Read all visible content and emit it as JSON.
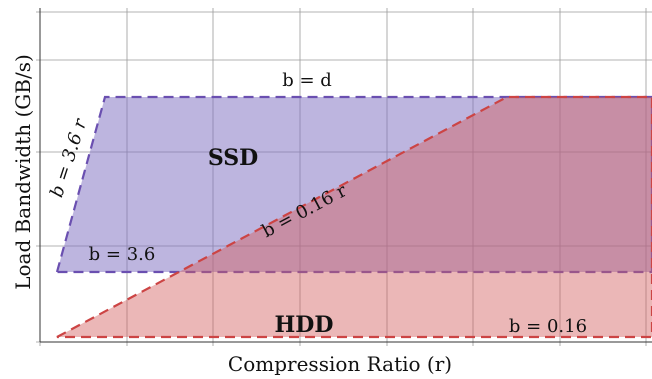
{
  "chart_data": {
    "type": "area",
    "xlabel": "Compression Ratio (r)",
    "ylabel": "Load Bandwidth (GB/s)",
    "grid": true,
    "ticks_labeled": false,
    "regions": [
      {
        "name": "SSD",
        "color": "#7b6cc0",
        "edge_color": "#6a4fb0",
        "fill_opacity": 0.5,
        "vertices": [
          [
            1.0,
            3.6
          ],
          [
            1.0,
            3.6
          ],
          [
            1.3,
            3.6
          ]
        ]
      },
      {
        "name": "HDD",
        "color": "#d36060",
        "edge_color": "#cc4444",
        "fill_opacity": 0.45
      }
    ],
    "annotations": [
      {
        "text": "b = d",
        "angle": 0
      },
      {
        "text": "b = 3.6 r",
        "angle": -72
      },
      {
        "text": "b = 3.6",
        "angle": 0
      },
      {
        "text": "b = 0.16 r",
        "angle": -28
      },
      {
        "text": "b = 0.16",
        "angle": 0
      }
    ]
  }
}
